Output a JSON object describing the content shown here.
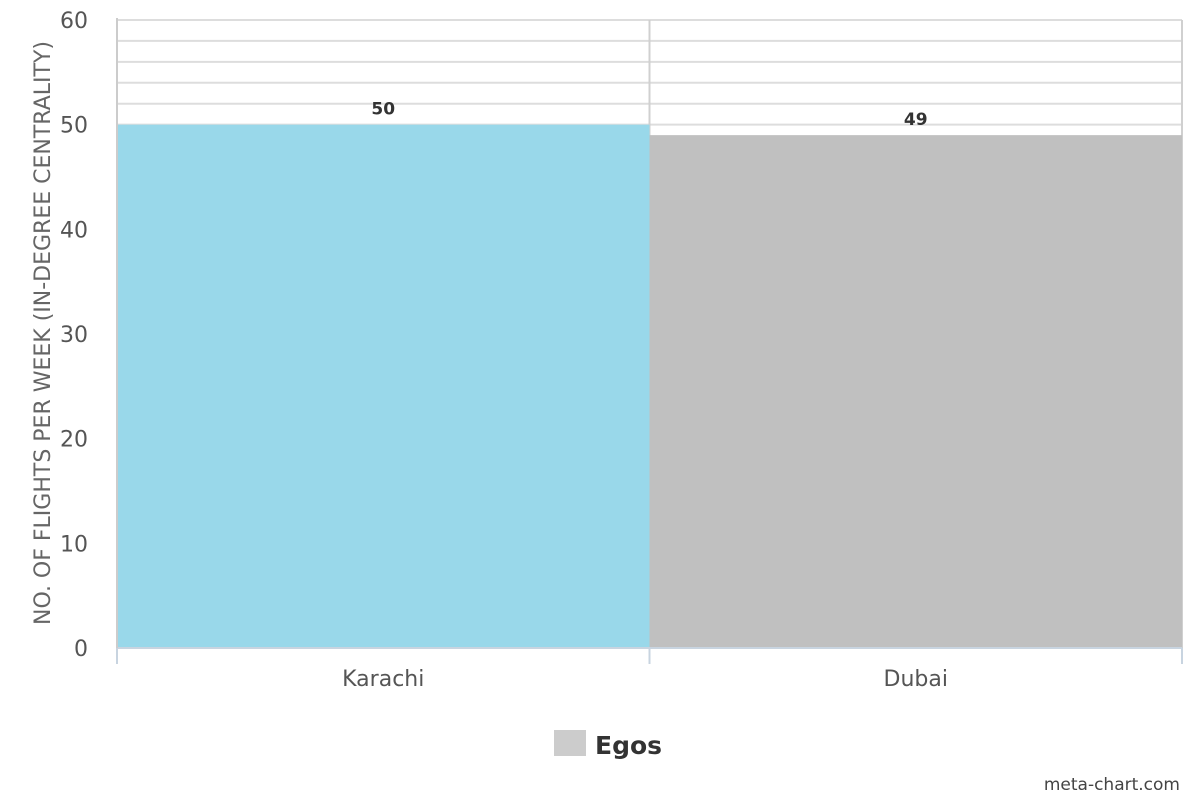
{
  "chart_data": {
    "type": "bar",
    "categories": [
      "Karachi",
      "Dubai"
    ],
    "values": [
      50,
      49
    ],
    "data_labels": [
      "50",
      "49"
    ],
    "bar_colors": [
      "#99d8ea",
      "#c0c0c0"
    ],
    "ylabel": "NO. OF FLIGHTS PER WEEK (IN-DEGREE CENTRALITY)",
    "xlabel": "",
    "ylim": [
      0,
      60
    ],
    "yticks": [
      0,
      10,
      20,
      30,
      40,
      50,
      60
    ],
    "grid": true,
    "legend": {
      "position": "bottom-center",
      "entries": [
        {
          "label": "Egos",
          "color": "#cccccc"
        }
      ]
    }
  },
  "credit": "meta-chart.com"
}
